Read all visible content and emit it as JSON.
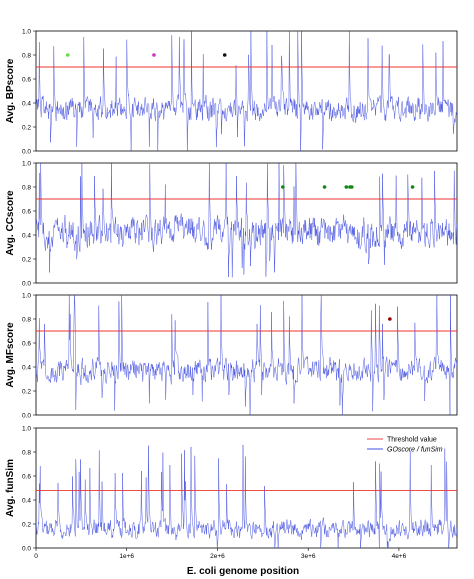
{
  "chart_data": [
    {
      "type": "line",
      "ylabel": "Avg. BPscore",
      "ylim": [
        0,
        1.0
      ],
      "yticks": [
        "0.0",
        "0.2",
        "0.4",
        "0.6",
        "0.8",
        "1.0"
      ],
      "threshold": 0.7,
      "base_level": 0.35,
      "noise": 0.09,
      "markers": [
        {
          "x": 350000,
          "y": 0.8,
          "color": "#66dd44"
        },
        {
          "x": 1300000,
          "y": 0.8,
          "color": "#cc33cc"
        },
        {
          "x": 2080000,
          "y": 0.8,
          "color": "#111111"
        }
      ]
    },
    {
      "type": "line",
      "ylabel": "Avg. CCscore",
      "ylim": [
        0,
        1.0
      ],
      "yticks": [
        "0.0",
        "0.2",
        "0.4",
        "0.6",
        "0.8",
        "1.0"
      ],
      "threshold": 0.7,
      "base_level": 0.42,
      "noise": 0.12,
      "markers": [
        {
          "x": 2720000,
          "y": 0.8,
          "color": "#118811"
        },
        {
          "x": 3180000,
          "y": 0.8,
          "color": "#118811"
        },
        {
          "x": 3420000,
          "y": 0.8,
          "color": "#118811"
        },
        {
          "x": 3460000,
          "y": 0.8,
          "color": "#118811"
        },
        {
          "x": 3480000,
          "y": 0.8,
          "color": "#118811"
        },
        {
          "x": 4150000,
          "y": 0.8,
          "color": "#118811"
        }
      ]
    },
    {
      "type": "line",
      "ylabel": "Avg. MFscore",
      "ylim": [
        0,
        1.0
      ],
      "yticks": [
        "0.0",
        "0.2",
        "0.4",
        "0.6",
        "0.8",
        "1.0"
      ],
      "threshold": 0.7,
      "base_level": 0.37,
      "noise": 0.09,
      "markers": [
        {
          "x": 3900000,
          "y": 0.8,
          "color": "#990000"
        }
      ]
    },
    {
      "type": "line",
      "ylabel": "Avg. funSim",
      "ylim": [
        0,
        1.0
      ],
      "yticks": [
        "0.0",
        "0.2",
        "0.4",
        "0.6",
        "0.8",
        "1.0"
      ],
      "threshold": 0.48,
      "base_level": 0.16,
      "noise": 0.07,
      "legend": {
        "position": "top-right",
        "threshold_label": "Threshold value",
        "series_label": "GOscore / funSim"
      },
      "markers": []
    }
  ],
  "x_axis": {
    "label": "E. coli genome position",
    "xlim": [
      0,
      4640000
    ],
    "ticks": [
      {
        "value": 0,
        "label": "0"
      },
      {
        "value": 1000000,
        "label": "1e+6"
      },
      {
        "value": 2000000,
        "label": "2e+6"
      },
      {
        "value": 3000000,
        "label": "3e+6"
      },
      {
        "value": 4000000,
        "label": "4e+6"
      }
    ]
  },
  "colors": {
    "series": "#3340dd",
    "threshold": "#ee3333",
    "frame": "#000000"
  }
}
